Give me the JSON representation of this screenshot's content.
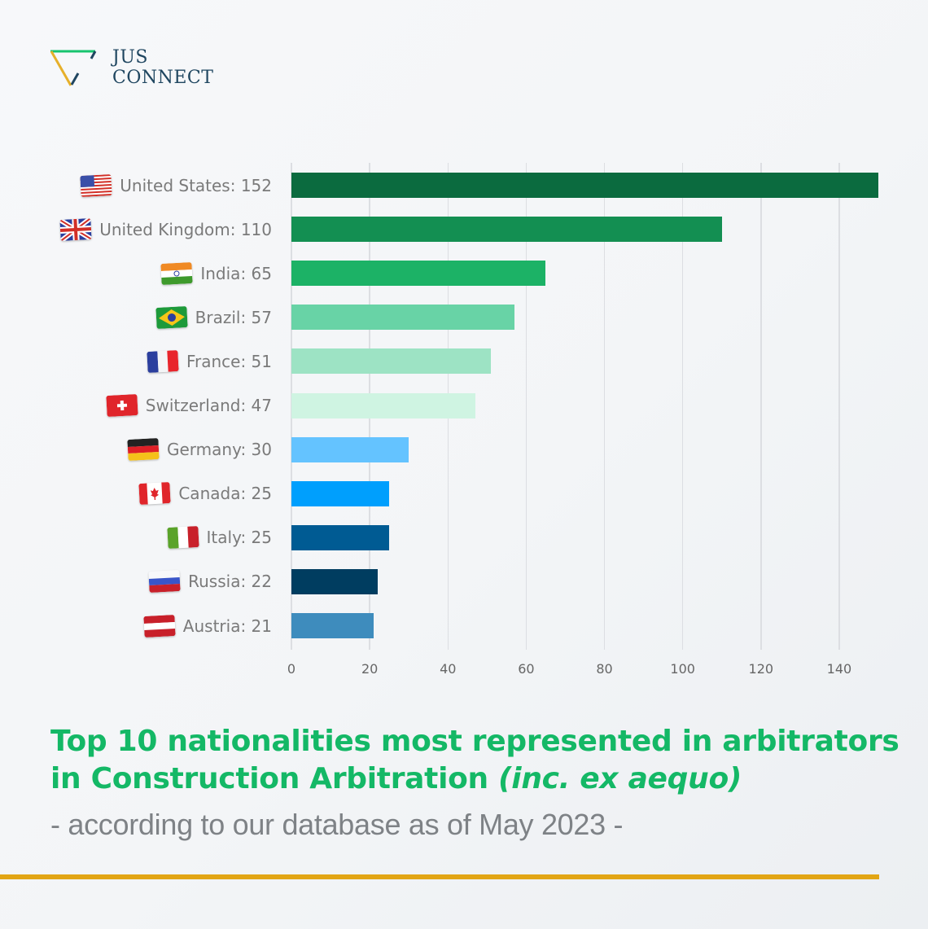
{
  "brand": {
    "line1": "JUS",
    "line2": "CONNECT",
    "colors": {
      "green": "#17c46e",
      "gold": "#e6b02a",
      "navy": "#1f4660"
    }
  },
  "title": {
    "main": "Top 10 nationalities most represented in arbitrators in Construction Arbitration ",
    "italic": "(inc. ex aequo)",
    "subtitle": "- according to our database as of May 2023 -"
  },
  "accent_rule_color": "#e2a514",
  "chart_data": {
    "type": "bar",
    "orientation": "horizontal",
    "title": "Top 10 nationalities most represented in arbitrators in Construction Arbitration (inc. ex aequo)",
    "subtitle": "- according to our database as of May 2023 -",
    "xlabel": "",
    "ylabel": "",
    "xlim": [
      0,
      150
    ],
    "xticks": [
      0,
      20,
      40,
      60,
      80,
      100,
      120,
      140
    ],
    "grid": "vertical",
    "legend": "none",
    "categories": [
      "United States",
      "United Kingdom",
      "India",
      "Brazil",
      "France",
      "Switzerland",
      "Germany",
      "Canada",
      "Italy",
      "Russia",
      "Austria"
    ],
    "labels": [
      "United States: 152",
      "United Kingdom: 110",
      "India: 65",
      "Brazil: 57",
      "France: 51",
      "Switzerland: 47",
      "Germany: 30",
      "Canada: 25",
      "Italy: 25",
      "Russia: 22",
      "Austria: 21"
    ],
    "values": [
      152,
      110,
      65,
      57,
      51,
      47,
      30,
      25,
      25,
      22,
      21
    ],
    "colors": [
      "#0b6b3f",
      "#138f52",
      "#1cb266",
      "#68d3a6",
      "#9de3c4",
      "#cff4e2",
      "#64c3ff",
      "#009ffd",
      "#005b93",
      "#003d60",
      "#3e8cbd"
    ],
    "flags": [
      "flag-us",
      "flag-uk",
      "flag-india",
      "flag-brazil",
      "flag-france",
      "flag-switzerland",
      "flag-germany",
      "flag-canada",
      "flag-italy",
      "flag-russia",
      "flag-austria"
    ]
  }
}
